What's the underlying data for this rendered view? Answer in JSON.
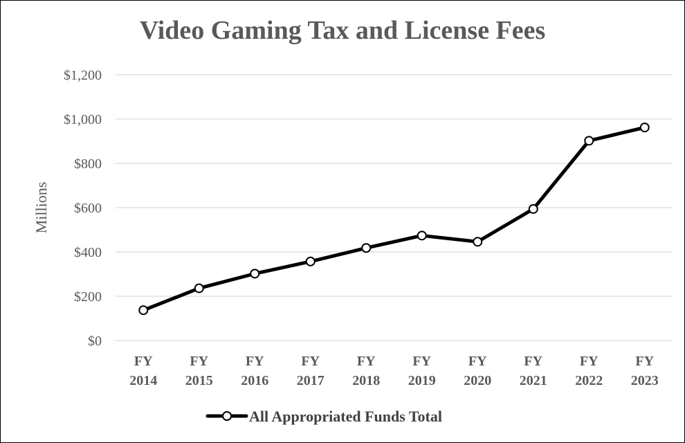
{
  "chart_data": {
    "type": "line",
    "title": "Video Gaming Tax and License Fees",
    "ylabel": "Millions",
    "xlabel": "",
    "ylim": [
      0,
      1200
    ],
    "ytick_values": [
      0,
      200,
      400,
      600,
      800,
      1000,
      1200
    ],
    "ytick_labels": [
      "$0",
      "$200",
      "$400",
      "$600",
      "$800",
      "$1,000",
      "$1,200"
    ],
    "categories": [
      [
        "FY",
        "2014"
      ],
      [
        "FY",
        "2015"
      ],
      [
        "FY",
        "2016"
      ],
      [
        "FY",
        "2017"
      ],
      [
        "FY",
        "2018"
      ],
      [
        "FY",
        "2019"
      ],
      [
        "FY",
        "2020"
      ],
      [
        "FY",
        "2021"
      ],
      [
        "FY",
        "2022"
      ],
      [
        "FY",
        "2023"
      ]
    ],
    "series": [
      {
        "name": "All Appropriated Funds Total",
        "values": [
          137,
          236,
          302,
          357,
          418,
          474,
          446,
          594,
          902,
          962
        ]
      }
    ],
    "grid": true,
    "legend_position": "bottom",
    "colors": {
      "line": "#000000",
      "grid": "#d9d9d9",
      "text": "#595959"
    }
  }
}
